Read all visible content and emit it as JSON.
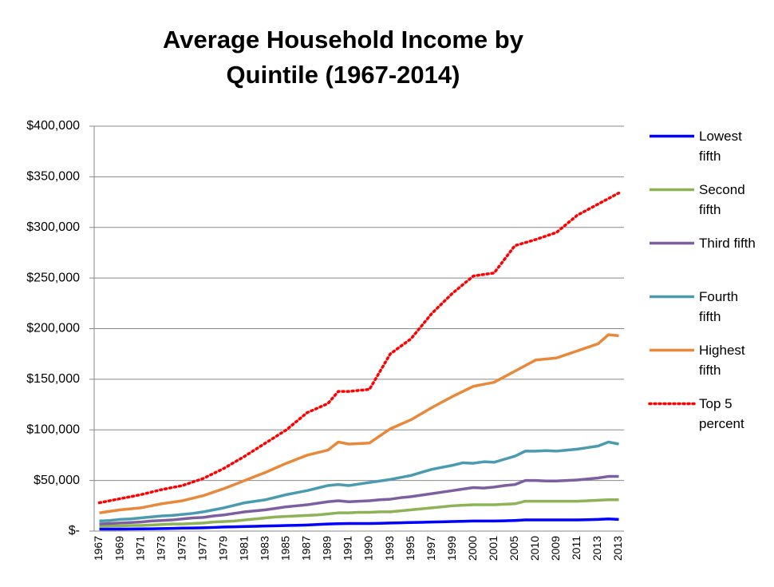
{
  "chart_data": {
    "type": "line",
    "title": "Average Household Income by Quintile (1967-2014)",
    "categories": [
      "1967",
      null,
      "1969",
      null,
      "1971",
      null,
      "1973",
      null,
      "1975",
      null,
      "1977",
      null,
      "1979",
      null,
      "1981",
      null,
      "1983",
      null,
      "1985",
      null,
      "1987",
      null,
      "1989",
      null,
      "1991",
      null,
      "1990",
      null,
      "1993",
      null,
      "1995",
      null,
      "1997",
      null,
      "1999",
      null,
      "2000",
      null,
      "2001",
      null,
      "2005",
      null,
      "2010",
      null,
      "2009",
      null,
      "2011",
      null,
      "2013",
      null,
      "2013"
    ],
    "series": [
      {
        "name": "Lowest fifth",
        "color": "#0000ff",
        "style": "solid",
        "values": [
          2000,
          2000,
          2000,
          2100,
          2200,
          2300,
          2500,
          2700,
          3000,
          3100,
          3300,
          3600,
          4000,
          4200,
          4500,
          4700,
          5000,
          5200,
          5500,
          5700,
          6000,
          6500,
          7000,
          7300,
          7500,
          7500,
          7500,
          7700,
          8000,
          8200,
          8500,
          8700,
          9000,
          9200,
          9500,
          9700,
          10000,
          10000,
          10000,
          10200,
          10500,
          11000,
          11000,
          11000,
          11000,
          11000,
          11000,
          11200,
          11500,
          12000,
          11500
        ]
      },
      {
        "name": "Second fifth",
        "color": "#8db356",
        "style": "solid",
        "values": [
          4500,
          5000,
          5000,
          5500,
          5500,
          6000,
          6500,
          7000,
          7000,
          7500,
          8000,
          9000,
          9500,
          10000,
          11000,
          12000,
          13000,
          14000,
          14500,
          15000,
          15500,
          16000,
          17000,
          18000,
          18000,
          18500,
          18500,
          19000,
          19000,
          20000,
          21000,
          22000,
          23000,
          24000,
          25000,
          25500,
          26000,
          26000,
          26000,
          26500,
          27000,
          29500,
          29500,
          29500,
          29500,
          29500,
          29500,
          30000,
          30500,
          31000,
          31000
        ]
      },
      {
        "name": "Third fifth",
        "color": "#7d5fa0",
        "style": "solid",
        "values": [
          7000,
          7500,
          8000,
          8500,
          9000,
          10000,
          10500,
          11000,
          12000,
          13000,
          13500,
          15000,
          16000,
          17500,
          19000,
          20000,
          21000,
          22500,
          24000,
          25000,
          26000,
          27500,
          29000,
          30000,
          29000,
          29500,
          30000,
          31000,
          31500,
          33000,
          34000,
          35500,
          37000,
          38500,
          40000,
          41500,
          43000,
          42500,
          43500,
          45000,
          46000,
          50000,
          50000,
          49500,
          49500,
          50000,
          50500,
          51500,
          52500,
          54000,
          54000
        ]
      },
      {
        "name": "Fourth fifth",
        "color": "#4a9bb0",
        "style": "solid",
        "values": [
          10000,
          10500,
          11500,
          12000,
          13000,
          14000,
          15000,
          15500,
          16500,
          17500,
          19000,
          21000,
          23000,
          25500,
          28000,
          29500,
          31000,
          33500,
          36000,
          38000,
          40000,
          42500,
          45000,
          46000,
          45000,
          46500,
          48000,
          49500,
          51000,
          53000,
          55000,
          58000,
          61000,
          63000,
          65000,
          67500,
          67000,
          68500,
          68000,
          71000,
          74000,
          79000,
          79000,
          79500,
          79000,
          80000,
          81000,
          82500,
          84000,
          88000,
          86000
        ]
      },
      {
        "name": "Highest fifth",
        "color": "#e8883a",
        "style": "solid",
        "values": [
          18000,
          19500,
          21000,
          22000,
          23000,
          25000,
          27000,
          28500,
          30000,
          32500,
          35000,
          38500,
          42000,
          46000,
          50000,
          54000,
          58000,
          62500,
          67000,
          71000,
          75000,
          77500,
          80000,
          88000,
          86000,
          86500,
          87000,
          94000,
          101000,
          105500,
          110000,
          116000,
          122000,
          127500,
          133000,
          138000,
          143000,
          145000,
          147000,
          152500,
          158000,
          163500,
          169000,
          170000,
          171000,
          174500,
          178000,
          181500,
          185000,
          194000,
          193000
        ]
      },
      {
        "name": "Top 5 percent",
        "color": "#ff0000",
        "style": "dotted",
        "values": [
          28000,
          30000,
          32000,
          34000,
          36000,
          38500,
          41000,
          43000,
          45000,
          48500,
          52000,
          57000,
          62000,
          68000,
          74000,
          80500,
          87000,
          93500,
          100000,
          108500,
          117000,
          121500,
          126000,
          138000,
          138000,
          139000,
          140000,
          157500,
          175000,
          182500,
          190000,
          202500,
          215000,
          225000,
          235000,
          243500,
          252000,
          253500,
          255000,
          268500,
          282000,
          285000,
          288000,
          291500,
          295000,
          303500,
          312000,
          317500,
          323000,
          328500,
          334000
        ]
      }
    ],
    "ylim": [
      0,
      400000
    ],
    "yticks": [
      {
        "value": 0,
        "label": "$-"
      },
      {
        "value": 50000,
        "label": "$50,000"
      },
      {
        "value": 100000,
        "label": "$100,000"
      },
      {
        "value": 150000,
        "label": "$150,000"
      },
      {
        "value": 200000,
        "label": "$200,000"
      },
      {
        "value": 250000,
        "label": "$250,000"
      },
      {
        "value": 300000,
        "label": "$300,000"
      },
      {
        "value": 350000,
        "label": "$350,000"
      },
      {
        "value": 400000,
        "label": "$400,000"
      }
    ],
    "grid": true,
    "legend": "right"
  }
}
